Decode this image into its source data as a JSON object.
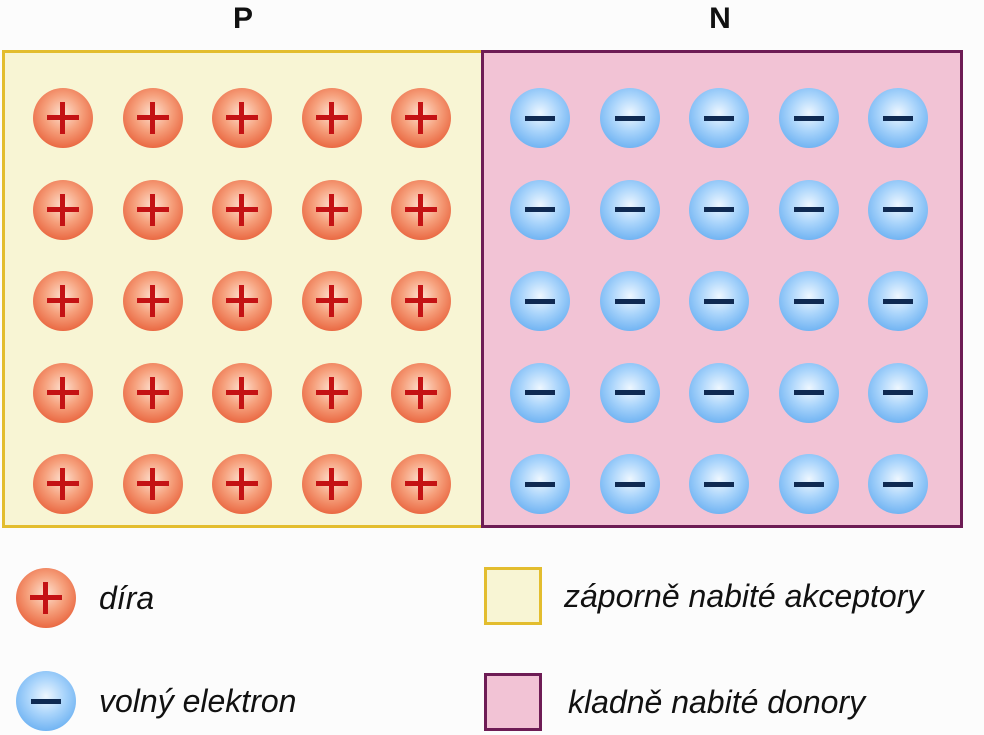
{
  "regions": {
    "p": {
      "label": "P",
      "particle": "hole",
      "rows": 5,
      "cols": 5
    },
    "n": {
      "label": "N",
      "particle": "electron",
      "rows": 5,
      "cols": 5
    }
  },
  "legend": {
    "hole": {
      "label": "díra",
      "icon": "plus-sign"
    },
    "electron": {
      "label": "volný elektron",
      "icon": "minus-sign"
    },
    "acceptor": {
      "label": "záporně nabité akceptory",
      "color": "#f8f5d4",
      "border": "#e3bd2e"
    },
    "donor": {
      "label": "kladně nabité donory",
      "color": "#f2c3d5",
      "border": "#6e1c55"
    }
  },
  "colors": {
    "hole_sign": "#c41214",
    "electron_sign": "#0f2a52",
    "hole_fill": "#ea6a44",
    "electron_fill": "#6eb2f2"
  }
}
